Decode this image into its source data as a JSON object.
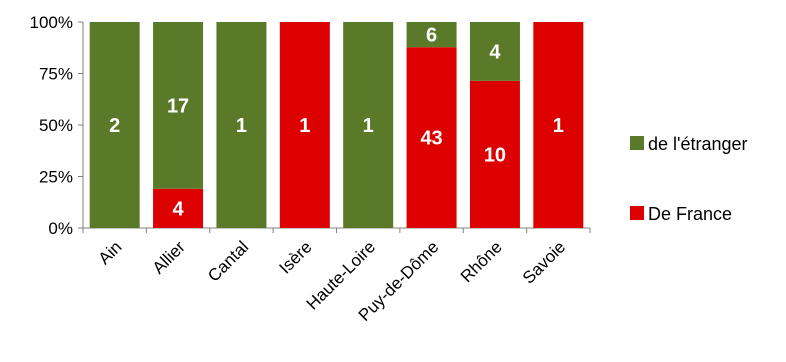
{
  "chart_data": {
    "type": "bar",
    "stacked": "percent",
    "categories": [
      "Ain",
      "Allier",
      "Cantal",
      "Isère",
      "Haute-Loire",
      "Puy-de-Dôme",
      "Rhône",
      "Savoie"
    ],
    "series": [
      {
        "name": "De France",
        "color": "#dd0000",
        "values": [
          0,
          4,
          0,
          1,
          0,
          43,
          10,
          1
        ]
      },
      {
        "name": "de l'étranger",
        "color": "#5a7a2a",
        "values": [
          2,
          17,
          1,
          0,
          1,
          6,
          4,
          0
        ]
      }
    ],
    "ylim": [
      0,
      100
    ],
    "yticks": [
      "0%",
      "25%",
      "50%",
      "75%",
      "100%"
    ],
    "legend_position": "right",
    "legend_order": [
      "de l'étranger",
      "De France"
    ],
    "grid": false
  }
}
